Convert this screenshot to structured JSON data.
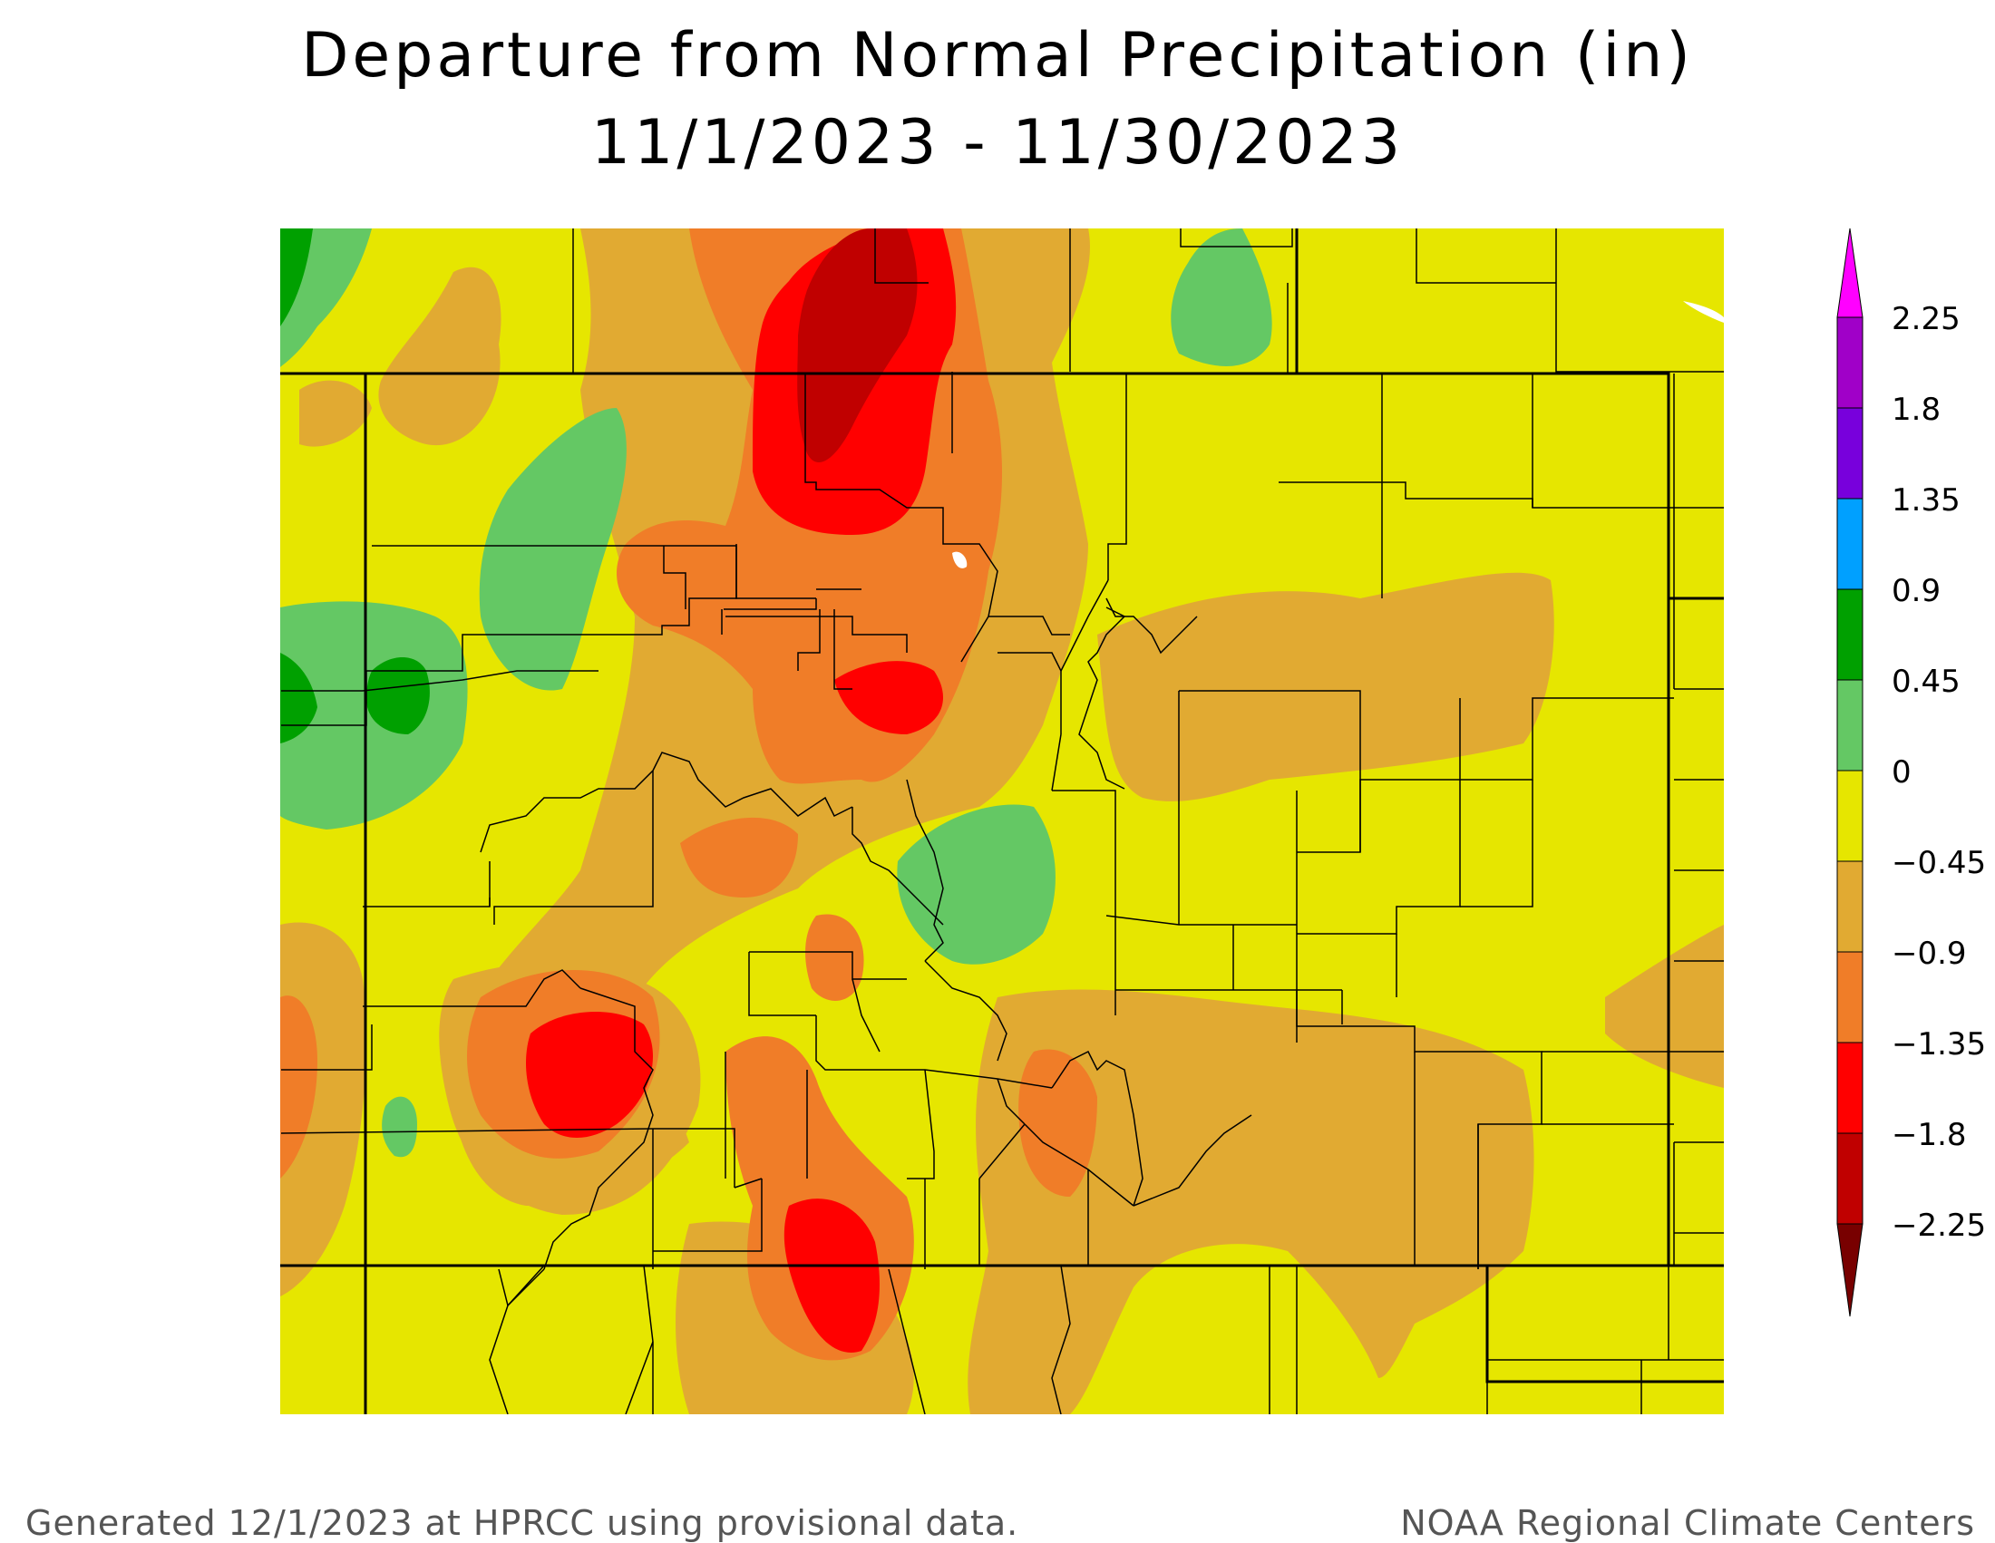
{
  "title": "Departure from Normal Precipitation (in)",
  "subtitle": "11/1/2023 - 11/30/2023",
  "footer_left": "Generated 12/1/2023 at HPRCC using provisional data.",
  "footer_right": "NOAA Regional Climate Centers",
  "legend": {
    "labels": [
      "2.25",
      "1.8",
      "1.35",
      "0.9",
      "0.45",
      "0",
      "−0.45",
      "−0.9",
      "−1.35",
      "−1.8",
      "−2.25"
    ],
    "colors": {
      "above_2_25": "#ff00ff",
      "1_8_to_2_25": "#a000c8",
      "1_35_to_1_8": "#7800dc",
      "0_9_to_1_35": "#00a0ff",
      "0_45_to_0_9": "#00a000",
      "0_to_0_45": "#64c864",
      "neg_0_45_to_0": "#e6e600",
      "neg_0_9_to_neg_0_45": "#e1aa32",
      "neg_1_35_to_neg_0_9": "#f07d28",
      "neg_1_8_to_neg_1_35": "#ff0000",
      "neg_2_25_to_neg_1_8": "#c00000",
      "below_neg_2_25": "#780000"
    }
  }
}
